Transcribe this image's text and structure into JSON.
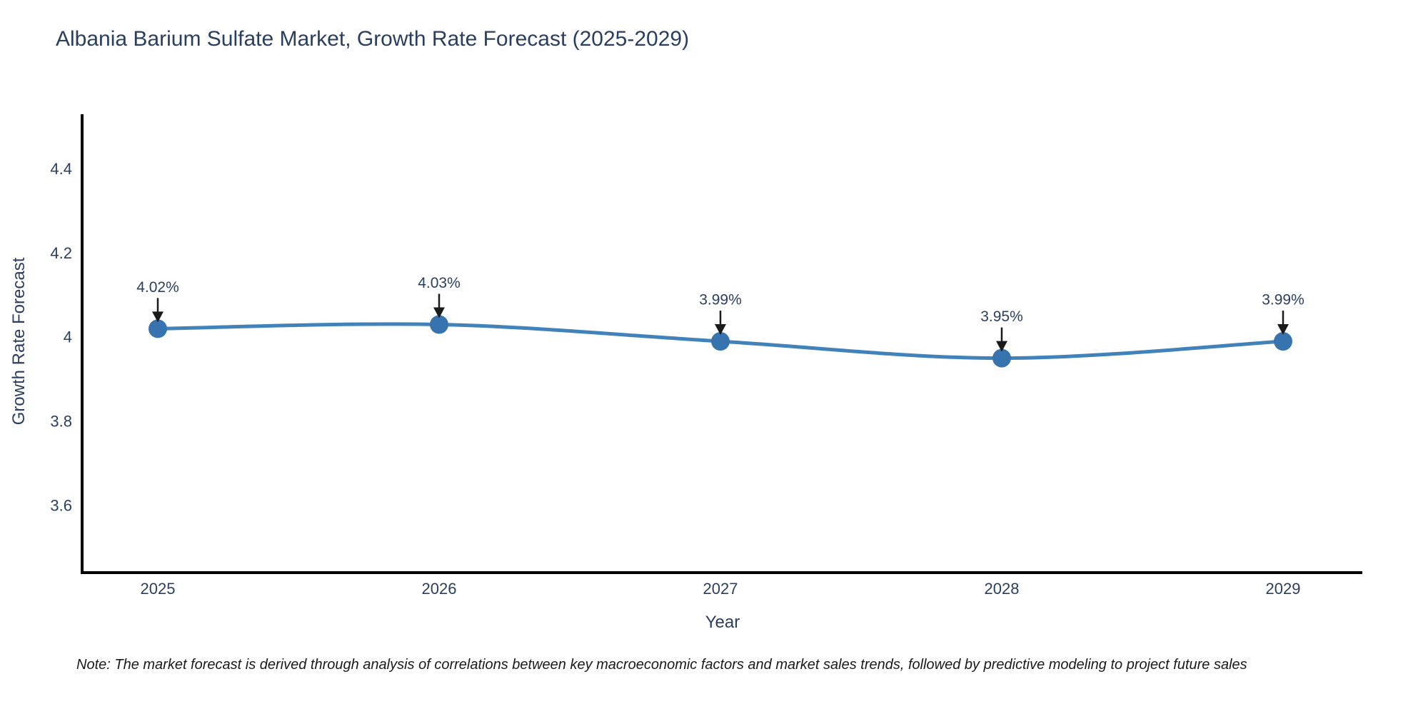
{
  "page": {
    "note": "Note: The market forecast is derived through analysis of correlations between key macroeconomic factors and market sales trends, followed by predictive modeling to project future sales"
  },
  "chart_data": {
    "type": "line",
    "title": "Albania Barium Sulfate Market, Growth Rate Forecast (2025-2029)",
    "categories": [
      "2025",
      "2026",
      "2027",
      "2028",
      "2029"
    ],
    "series": [
      {
        "name": "Growth Rate Forecast",
        "values": [
          4.02,
          4.03,
          3.99,
          3.95,
          3.99
        ]
      }
    ],
    "point_labels": [
      "4.02%",
      "4.03%",
      "3.99%",
      "3.95%",
      "3.99%"
    ],
    "xlabel": "Year",
    "ylabel": "Growth Rate Forecast",
    "yticks": [
      3.6,
      3.8,
      4.0,
      4.2,
      4.4
    ],
    "ytick_labels": [
      "3.6",
      "3.8",
      "4",
      "4.2",
      "4.4"
    ],
    "ylim": [
      3.44,
      4.53
    ],
    "grid": false,
    "legend_position": "none",
    "line_shape": "spline",
    "annotation_arrows": true,
    "colors": {
      "line": "#4282ba",
      "marker": "#3773af",
      "axis": "#000000",
      "tick_text": "#2a3f5f",
      "annotation_text": "#2a3f5f",
      "arrow": "#1a1a1a",
      "title_text": "#2a3f5f",
      "note_text": "#1a1a1a"
    }
  }
}
